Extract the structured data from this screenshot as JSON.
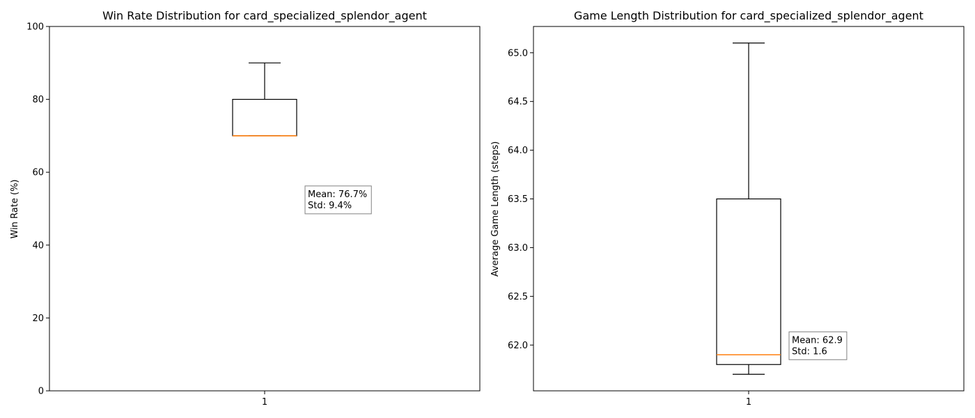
{
  "chart_data": [
    {
      "type": "box",
      "title": "Win Rate Distribution for card_specialized_splendor_agent",
      "xlabel": "",
      "ylabel": "Win Rate (%)",
      "ylim": [
        0,
        100
      ],
      "yticks": [
        0,
        20,
        40,
        60,
        80,
        100
      ],
      "ytick_labels": [
        "0",
        "20",
        "40",
        "60",
        "80",
        "100"
      ],
      "xtick_labels": [
        "1"
      ],
      "box": {
        "whisker_low": 70,
        "q1": 70,
        "median": 70,
        "q3": 80,
        "whisker_high": 90
      },
      "annotation": {
        "mean": "Mean: 76.7%",
        "std": "Std: 9.4%",
        "anchor_y": 52.6
      },
      "grid": false,
      "colors": {
        "box": "#000000",
        "median": "#ff7f0e"
      }
    },
    {
      "type": "box",
      "title": "Game Length Distribution for card_specialized_splendor_agent",
      "xlabel": "",
      "ylabel": "Average Game Length (steps)",
      "ylim": [
        61.53,
        65.27
      ],
      "yticks": [
        62.0,
        62.5,
        63.0,
        63.5,
        64.0,
        64.5,
        65.0
      ],
      "ytick_labels": [
        "62.0",
        "62.5",
        "63.0",
        "63.5",
        "64.0",
        "64.5",
        "65.0"
      ],
      "xtick_labels": [
        "1"
      ],
      "box": {
        "whisker_low": 61.7,
        "q1": 61.8,
        "median": 61.9,
        "q3": 63.5,
        "whisker_high": 65.1
      },
      "annotation": {
        "mean": "Mean: 62.9",
        "std": "Std: 1.6",
        "anchor_y": 62.0
      },
      "grid": false,
      "colors": {
        "box": "#000000",
        "median": "#ff7f0e"
      }
    }
  ]
}
